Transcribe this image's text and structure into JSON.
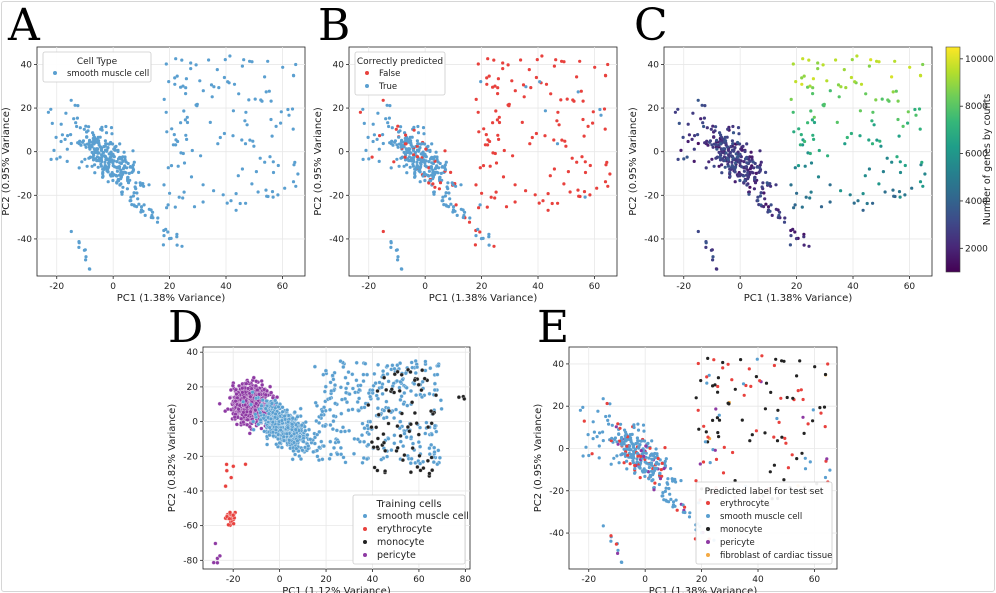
{
  "figure": {
    "colors": {
      "blue": "#5a9fd0",
      "red": "#e8413d",
      "black": "#222222",
      "purple": "#8e3aa3",
      "orange": "#f4a942",
      "grid": "#e8e8e8",
      "axis": "#222222"
    }
  },
  "chart_data": [
    {
      "id": "A",
      "letter": "A",
      "type": "scatter",
      "xlabel": "PC1 (1.38% Variance)",
      "ylabel": "PC2 (0.95% Variance)",
      "xlim": [
        -27,
        68
      ],
      "ylim": [
        -57,
        48
      ],
      "xticks": [
        -20,
        0,
        20,
        40,
        60
      ],
      "yticks": [
        -40,
        -20,
        0,
        20,
        40
      ],
      "grid": true,
      "legend": {
        "title": "Cell Type",
        "position": "top-left",
        "entries": [
          {
            "label": "smooth muscle cell",
            "color": "#5a9fd0"
          }
        ]
      },
      "series": [
        {
          "name": "smooth muscle cell",
          "color": "#5a9fd0",
          "points": "test"
        }
      ]
    },
    {
      "id": "B",
      "letter": "B",
      "type": "scatter",
      "xlabel": "PC1 (1.38% Variance)",
      "ylabel": "PC2 (0.95% Variance)",
      "xlim": [
        -27,
        68
      ],
      "ylim": [
        -57,
        48
      ],
      "xticks": [
        -20,
        0,
        20,
        40,
        60
      ],
      "yticks": [
        -40,
        -20,
        0,
        20,
        40
      ],
      "grid": true,
      "legend": {
        "title": "Correctly predicted",
        "position": "top-left",
        "entries": [
          {
            "label": "False",
            "color": "#e8413d"
          },
          {
            "label": "True",
            "color": "#5a9fd0"
          }
        ]
      },
      "series": [
        {
          "name": "False",
          "color": "#e8413d",
          "points": "test-incorrect"
        },
        {
          "name": "True",
          "color": "#5a9fd0",
          "points": "test-correct"
        }
      ]
    },
    {
      "id": "C",
      "letter": "C",
      "type": "scatter",
      "xlabel": "PC1 (1.38% Variance)",
      "ylabel": "PC2 (0.95% Variance)",
      "xlim": [
        -27,
        68
      ],
      "ylim": [
        -57,
        48
      ],
      "xticks": [
        -20,
        0,
        20,
        40,
        60
      ],
      "yticks": [
        -40,
        -20,
        0,
        20,
        40
      ],
      "grid": true,
      "colorbar": {
        "label": "Number of genes by counts",
        "range": [
          1000,
          10500
        ],
        "ticks": [
          2000,
          4000,
          6000,
          8000,
          10000
        ],
        "colormap": "viridis"
      },
      "series": [
        {
          "name": "n_genes_by_counts",
          "color": "viridis",
          "points": "test"
        }
      ]
    },
    {
      "id": "D",
      "letter": "D",
      "type": "scatter",
      "xlabel": "PC1 (1.12% Variance)",
      "ylabel": "PC2 (0.82% Variance)",
      "xlim": [
        -33,
        82
      ],
      "ylim": [
        -85,
        43
      ],
      "xticks": [
        -20,
        0,
        20,
        40,
        60,
        80
      ],
      "yticks": [
        -80,
        -60,
        -40,
        -20,
        0,
        20,
        40
      ],
      "grid": true,
      "legend": {
        "title": "Training cells",
        "position": "bottom-right",
        "entries": [
          {
            "label": "smooth muscle cell",
            "color": "#5a9fd0"
          },
          {
            "label": "erythrocyte",
            "color": "#e8413d"
          },
          {
            "label": "monocyte",
            "color": "#222222"
          },
          {
            "label": "pericyte",
            "color": "#8e3aa3"
          }
        ]
      },
      "series": [
        {
          "name": "smooth muscle cell",
          "color": "#5a9fd0",
          "points": "train"
        },
        {
          "name": "erythrocyte",
          "color": "#e8413d",
          "points": "train"
        },
        {
          "name": "monocyte",
          "color": "#222222",
          "points": "train"
        },
        {
          "name": "pericyte",
          "color": "#8e3aa3",
          "points": "train"
        }
      ]
    },
    {
      "id": "E",
      "letter": "E",
      "type": "scatter",
      "xlabel": "PC1 (1.38% Variance)",
      "ylabel": "PC2 (0.95% Variance)",
      "xlim": [
        -27,
        68
      ],
      "ylim": [
        -57,
        48
      ],
      "xticks": [
        -20,
        0,
        20,
        40,
        60
      ],
      "yticks": [
        -40,
        -20,
        0,
        20,
        40
      ],
      "grid": true,
      "legend": {
        "title": "Predicted label for test set",
        "position": "bottom-right",
        "entries": [
          {
            "label": "erythrocyte",
            "color": "#e8413d"
          },
          {
            "label": "smooth muscle cell",
            "color": "#5a9fd0"
          },
          {
            "label": "monocyte",
            "color": "#222222"
          },
          {
            "label": "pericyte",
            "color": "#8e3aa3"
          },
          {
            "label": "fibroblast of cardiac tissue",
            "color": "#f4a942"
          }
        ]
      },
      "series": [
        {
          "name": "erythrocyte",
          "color": "#e8413d",
          "points": "test-pred"
        },
        {
          "name": "smooth muscle cell",
          "color": "#5a9fd0",
          "points": "test-pred"
        },
        {
          "name": "monocyte",
          "color": "#222222",
          "points": "test-pred"
        },
        {
          "name": "pericyte",
          "color": "#8e3aa3",
          "points": "test-pred"
        },
        {
          "name": "fibroblast of cardiac tissue",
          "color": "#f4a942",
          "points": "test-pred"
        }
      ]
    }
  ]
}
